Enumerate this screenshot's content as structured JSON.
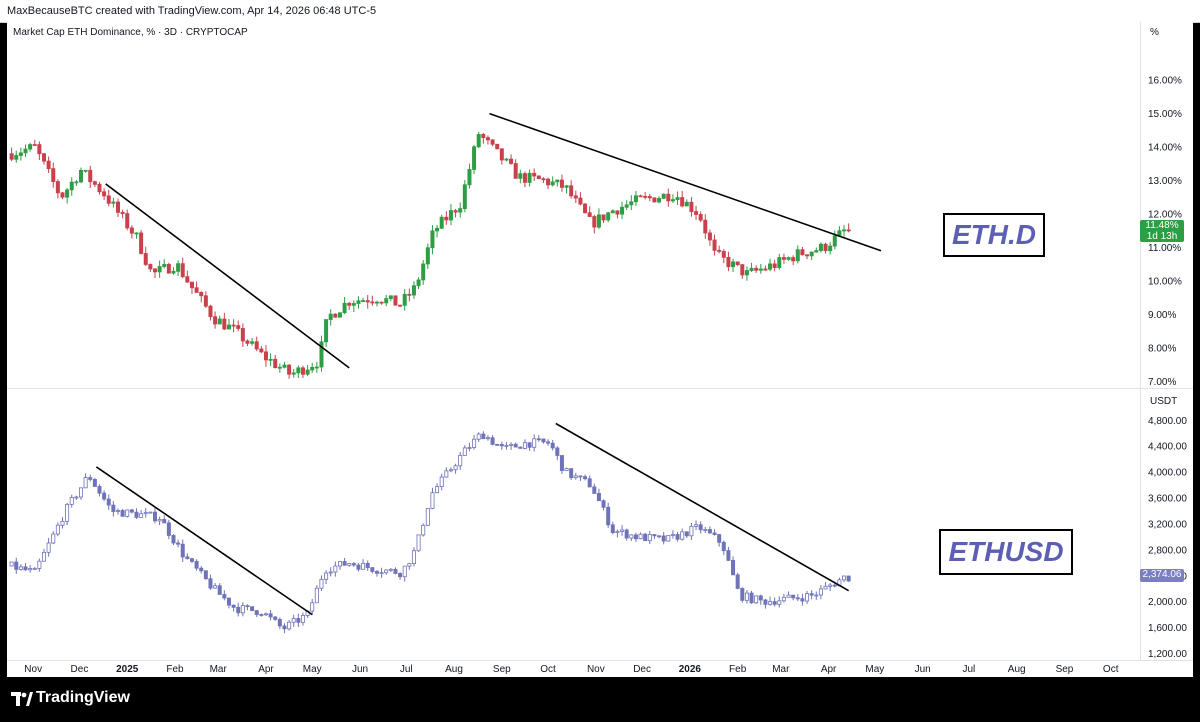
{
  "header": {
    "credit": "MaxBecauseBTC created with TradingView.com, Apr 14, 2026 06:48 UTC-5"
  },
  "footer": {
    "brand": "TradingView"
  },
  "colors": {
    "up": "#2e9e44",
    "down": "#c9414b",
    "ethusd": "#6f73b8",
    "trend": "#000000"
  },
  "chart_data": [
    {
      "type": "candlestick",
      "title": "Market Cap ETH Dominance, % · 3D · CRYPTOCAP",
      "label": "ETH.D",
      "ylabel": "%",
      "ylim": [
        6.8,
        16.9
      ],
      "yticks": [
        "16.00%",
        "15.00%",
        "14.00%",
        "13.00%",
        "12.00%",
        "11.00%",
        "10.00%",
        "9.00%",
        "8.00%",
        "7.00%"
      ],
      "ytick_values": [
        16,
        15,
        14,
        13,
        12,
        11,
        10,
        9,
        8,
        7
      ],
      "last_value": "11.48%",
      "countdown": "1d 13h",
      "anchors": [
        [
          "2024-10-20",
          13.8
        ],
        [
          "2024-11-05",
          14.0
        ],
        [
          "2024-11-22",
          12.5
        ],
        [
          "2024-12-05",
          13.3
        ],
        [
          "2024-12-20",
          12.6
        ],
        [
          "2025-01-10",
          11.3
        ],
        [
          "2025-01-20",
          10.2
        ],
        [
          "2025-02-05",
          10.5
        ],
        [
          "2025-02-15",
          9.8
        ],
        [
          "2025-03-01",
          8.9
        ],
        [
          "2025-03-15",
          8.5
        ],
        [
          "2025-04-01",
          7.8
        ],
        [
          "2025-04-20",
          7.2
        ],
        [
          "2025-05-08",
          7.6
        ],
        [
          "2025-05-14",
          8.9
        ],
        [
          "2025-05-28",
          9.4
        ],
        [
          "2025-06-15",
          9.5
        ],
        [
          "2025-06-30",
          9.3
        ],
        [
          "2025-07-10",
          9.8
        ],
        [
          "2025-07-22",
          11.5
        ],
        [
          "2025-08-08",
          12.3
        ],
        [
          "2025-08-20",
          14.4
        ],
        [
          "2025-09-01",
          13.8
        ],
        [
          "2025-09-15",
          13.1
        ],
        [
          "2025-10-01",
          13.0
        ],
        [
          "2025-10-15",
          12.8
        ],
        [
          "2025-11-01",
          11.7
        ],
        [
          "2025-11-15",
          12.1
        ],
        [
          "2025-12-01",
          12.4
        ],
        [
          "2025-12-25",
          12.6
        ],
        [
          "2026-01-10",
          12.0
        ],
        [
          "2026-01-20",
          10.8
        ],
        [
          "2026-02-10",
          10.2
        ],
        [
          "2026-03-01",
          10.5
        ],
        [
          "2026-03-15",
          10.8
        ],
        [
          "2026-04-01",
          11.0
        ],
        [
          "2026-04-14",
          11.48
        ]
      ],
      "trendlines": [
        {
          "from": [
            "2024-12-18",
            12.9
          ],
          "to": [
            "2025-05-25",
            7.4
          ]
        },
        {
          "from": [
            "2025-08-24",
            15.0
          ],
          "to": [
            "2026-05-05",
            10.9
          ]
        }
      ]
    },
    {
      "type": "candlestick",
      "label": "ETHUSD",
      "ylabel": "USDT",
      "ylim": [
        1100,
        5020
      ],
      "yticks": [
        "4,800.00",
        "4,400.00",
        "4,000.00",
        "3,600.00",
        "3,200.00",
        "2,800.00",
        "2,400.00",
        "2,000.00",
        "1,600.00",
        "1,200.00"
      ],
      "ytick_values": [
        4800,
        4400,
        4000,
        3600,
        3200,
        2800,
        2400,
        2000,
        1600,
        1200
      ],
      "last_value": "2,374.06",
      "anchors": [
        [
          "2024-10-20",
          2550
        ],
        [
          "2024-11-05",
          2450
        ],
        [
          "2024-11-25",
          3400
        ],
        [
          "2024-12-10",
          3950
        ],
        [
          "2024-12-25",
          3400
        ],
        [
          "2025-01-10",
          3350
        ],
        [
          "2025-01-25",
          3300
        ],
        [
          "2025-02-10",
          2700
        ],
        [
          "2025-03-01",
          2200
        ],
        [
          "2025-03-15",
          1900
        ],
        [
          "2025-04-01",
          1850
        ],
        [
          "2025-04-15",
          1580
        ],
        [
          "2025-05-01",
          1800
        ],
        [
          "2025-05-12",
          2500
        ],
        [
          "2025-05-28",
          2600
        ],
        [
          "2025-06-15",
          2500
        ],
        [
          "2025-07-01",
          2450
        ],
        [
          "2025-07-10",
          2800
        ],
        [
          "2025-07-20",
          3650
        ],
        [
          "2025-08-10",
          4300
        ],
        [
          "2025-08-22",
          4600
        ],
        [
          "2025-09-05",
          4350
        ],
        [
          "2025-09-20",
          4450
        ],
        [
          "2025-10-05",
          4450
        ],
        [
          "2025-10-15",
          4000
        ],
        [
          "2025-11-01",
          3800
        ],
        [
          "2025-11-15",
          3100
        ],
        [
          "2025-12-01",
          3000
        ],
        [
          "2025-12-20",
          2950
        ],
        [
          "2026-01-10",
          3150
        ],
        [
          "2026-01-25",
          2900
        ],
        [
          "2026-02-05",
          2100
        ],
        [
          "2026-02-20",
          2000
        ],
        [
          "2026-03-10",
          2050
        ],
        [
          "2026-03-25",
          2100
        ],
        [
          "2026-04-14",
          2374
        ]
      ],
      "trendlines": [
        {
          "from": [
            "2024-12-12",
            4080
          ],
          "to": [
            "2025-05-01",
            1800
          ]
        },
        {
          "from": [
            "2025-10-06",
            4750
          ],
          "to": [
            "2026-04-14",
            2170
          ]
        }
      ]
    }
  ],
  "x_axis": {
    "ticks": [
      {
        "label": "Nov",
        "date": "2024-11-01",
        "bold": false
      },
      {
        "label": "Dec",
        "date": "2024-12-01",
        "bold": false
      },
      {
        "label": "2025",
        "date": "2025-01-01",
        "bold": true
      },
      {
        "label": "Feb",
        "date": "2025-02-01",
        "bold": false
      },
      {
        "label": "Mar",
        "date": "2025-03-01",
        "bold": false
      },
      {
        "label": "Apr",
        "date": "2025-04-01",
        "bold": false
      },
      {
        "label": "May",
        "date": "2025-05-01",
        "bold": false
      },
      {
        "label": "Jun",
        "date": "2025-06-01",
        "bold": false
      },
      {
        "label": "Jul",
        "date": "2025-07-01",
        "bold": false
      },
      {
        "label": "Aug",
        "date": "2025-08-01",
        "bold": false
      },
      {
        "label": "Sep",
        "date": "2025-09-01",
        "bold": false
      },
      {
        "label": "Oct",
        "date": "2025-10-01",
        "bold": false
      },
      {
        "label": "Nov",
        "date": "2025-11-01",
        "bold": false
      },
      {
        "label": "Dec",
        "date": "2025-12-01",
        "bold": false
      },
      {
        "label": "2026",
        "date": "2026-01-01",
        "bold": true
      },
      {
        "label": "Feb",
        "date": "2026-02-01",
        "bold": false
      },
      {
        "label": "Mar",
        "date": "2026-03-01",
        "bold": false
      },
      {
        "label": "Apr",
        "date": "2026-04-01",
        "bold": false
      },
      {
        "label": "May",
        "date": "2026-05-01",
        "bold": false
      },
      {
        "label": "Jun",
        "date": "2026-06-01",
        "bold": false
      },
      {
        "label": "Jul",
        "date": "2026-07-01",
        "bold": false
      },
      {
        "label": "Aug",
        "date": "2026-08-01",
        "bold": false
      },
      {
        "label": "Sep",
        "date": "2026-09-01",
        "bold": false
      },
      {
        "label": "Oct",
        "date": "2026-10-01",
        "bold": false
      }
    ],
    "range": [
      "2024-10-15",
      "2026-10-20"
    ],
    "candle_start": "2024-10-18",
    "candle_end": "2026-04-14",
    "candle_interval_days": 3
  }
}
